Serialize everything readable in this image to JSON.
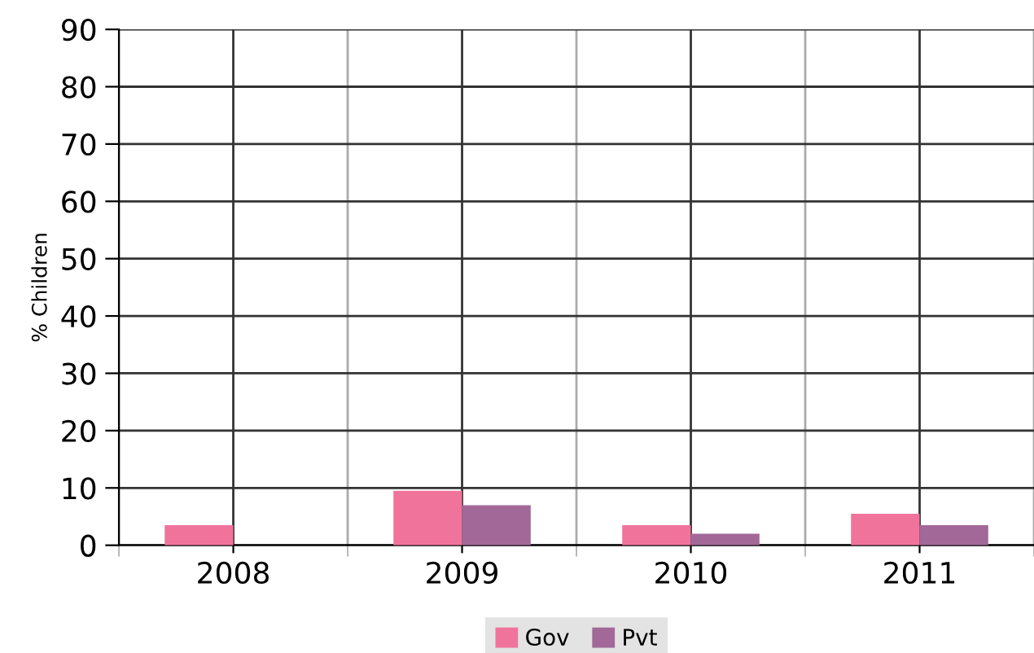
{
  "chart_data": {
    "type": "bar",
    "ylabel": "% Children",
    "categories": [
      "2008",
      "2009",
      "2010",
      "2011"
    ],
    "series": [
      {
        "name": "Gov",
        "color": "#f0739c",
        "values": [
          3.5,
          9.5,
          3.5,
          5.5
        ]
      },
      {
        "name": "Pvt",
        "color": "#a26898",
        "values": [
          0,
          7,
          2,
          3.5
        ]
      }
    ],
    "ylim": [
      0,
      90
    ],
    "yticks": [
      0,
      10,
      20,
      30,
      40,
      50,
      60,
      70,
      80,
      90
    ],
    "grid": true,
    "legend": "bottom"
  }
}
